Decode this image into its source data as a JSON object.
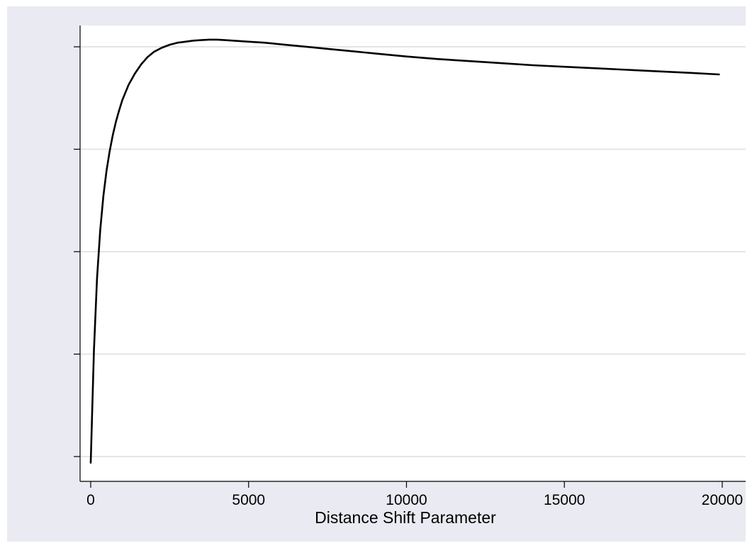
{
  "chart_data": {
    "type": "line",
    "title": "",
    "xlabel": "Distance Shift Parameter",
    "ylabel": "",
    "xlim": [
      0,
      20000
    ],
    "ylim": [
      0,
      4
    ],
    "x_ticks": [
      0,
      5000,
      10000,
      15000,
      20000
    ],
    "x_tick_labels": [
      "0",
      "5000",
      "10000",
      "15000",
      "20000"
    ],
    "y_ticks": [
      0,
      1,
      2,
      3,
      4
    ],
    "y_tick_labels": [
      "",
      "",
      "",
      "",
      ""
    ],
    "grid": true,
    "colors": {
      "background": "#eaeaf2",
      "plot_area": "#ffffff",
      "grid": "#e5e5e5",
      "line": "#000000"
    },
    "series": [
      {
        "x": [
          0,
          100,
          200,
          300,
          400,
          500,
          600,
          700,
          800,
          900,
          1000,
          1200,
          1400,
          1600,
          1800,
          2000,
          2250,
          2500,
          2750,
          3000,
          3250,
          3500,
          3750,
          4000,
          4250,
          4500,
          5000,
          5500,
          6000,
          6500,
          7000,
          7500,
          8000,
          9000,
          10000,
          11000,
          12000,
          13000,
          14000,
          15000,
          16000,
          17000,
          18000,
          19000,
          19900
        ],
        "y": [
          -0.06,
          1.03,
          1.74,
          2.21,
          2.54,
          2.79,
          2.98,
          3.14,
          3.27,
          3.38,
          3.48,
          3.63,
          3.74,
          3.83,
          3.9,
          3.95,
          3.99,
          4.02,
          4.04,
          4.05,
          4.06,
          4.065,
          4.07,
          4.07,
          4.065,
          4.06,
          4.05,
          4.04,
          4.025,
          4.01,
          3.995,
          3.98,
          3.965,
          3.935,
          3.905,
          3.88,
          3.86,
          3.84,
          3.82,
          3.805,
          3.79,
          3.775,
          3.76,
          3.745,
          3.73
        ]
      }
    ]
  }
}
